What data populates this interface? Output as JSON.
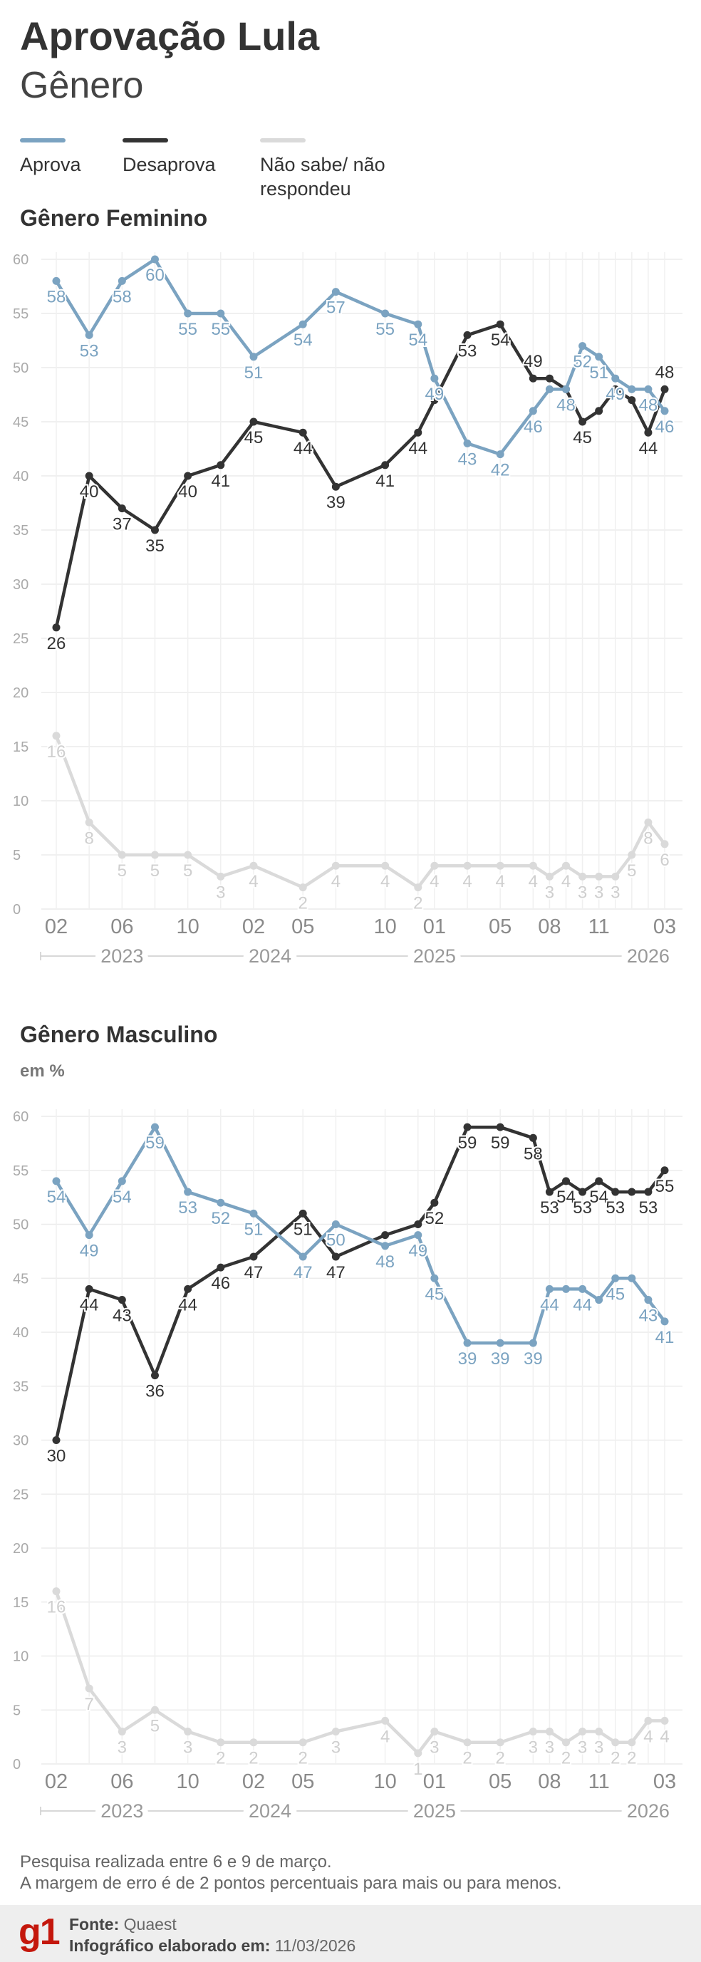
{
  "header": {
    "title": "Aprovação Lula",
    "subtitle": "Gênero"
  },
  "chart_data": [
    {
      "type": "line",
      "title": "Gênero Feminino",
      "x": [
        "2023-02",
        "2023-04",
        "2023-06",
        "2023-08",
        "2023-10",
        "2023-12",
        "2024-02",
        "2024-05",
        "2024-07",
        "2024-10",
        "2024-12",
        "2025-01",
        "2025-03",
        "2025-05",
        "2025-07",
        "2025-08",
        "2025-09",
        "2025-10",
        "2025-11",
        "2025-12",
        "2026-01",
        "2026-02",
        "2026-03"
      ],
      "xlim": [
        "2023-02",
        "2026-03"
      ],
      "xticks": [
        {
          "value": "2023-02",
          "label": "02"
        },
        {
          "value": "2023-06",
          "label": "06"
        },
        {
          "value": "2023-10",
          "label": "10"
        },
        {
          "value": "2024-02",
          "label": "02"
        },
        {
          "value": "2024-05",
          "label": "05"
        },
        {
          "value": "2024-10",
          "label": "10"
        },
        {
          "value": "2025-01",
          "label": "01"
        },
        {
          "value": "2025-05",
          "label": "05"
        },
        {
          "value": "2025-08",
          "label": "08"
        },
        {
          "value": "2025-11",
          "label": "11"
        },
        {
          "value": "2026-03",
          "label": "03"
        }
      ],
      "year_ticks": [
        {
          "value": "2023-06",
          "label": "2023"
        },
        {
          "value": "2024-03",
          "label": "2024"
        },
        {
          "value": "2025-01",
          "label": "2025"
        },
        {
          "value": "2026-02",
          "label": "2026"
        }
      ],
      "ylim": [
        0,
        60
      ],
      "yticks": [
        0,
        5,
        10,
        15,
        20,
        25,
        30,
        35,
        40,
        45,
        50,
        55,
        60
      ],
      "grid": true,
      "series": [
        {
          "name": "Aprova",
          "color": "#7ba3c1",
          "values": [
            58,
            53,
            58,
            60,
            55,
            55,
            51,
            54,
            57,
            55,
            54,
            49,
            43,
            42,
            46,
            48,
            48,
            52,
            51,
            49,
            48,
            48,
            46
          ],
          "value_labels": [
            "58",
            "53",
            "58",
            "60",
            "55",
            "55",
            "51",
            "54",
            "57",
            "55",
            "54",
            "49",
            "43",
            "42",
            "46",
            null,
            "48",
            "52",
            "51",
            "49",
            null,
            "48",
            "46"
          ]
        },
        {
          "name": "Desaprova",
          "color": "#333333",
          "values": [
            26,
            40,
            37,
            35,
            40,
            41,
            45,
            44,
            39,
            41,
            44,
            47,
            53,
            54,
            49,
            49,
            48,
            45,
            46,
            48,
            47,
            44,
            48
          ],
          "value_labels": [
            "26",
            "40",
            "37",
            "35",
            "40",
            "41",
            "45",
            "44",
            "39",
            "41",
            "44",
            null,
            "53",
            "54",
            "49",
            null,
            null,
            "45",
            null,
            null,
            null,
            "44",
            "48"
          ]
        },
        {
          "name": "Não sabe/ não respondeu",
          "color": "#dadada",
          "values": [
            16,
            8,
            5,
            5,
            5,
            3,
            4,
            2,
            4,
            4,
            2,
            4,
            4,
            4,
            4,
            3,
            4,
            3,
            3,
            3,
            5,
            8,
            6
          ],
          "value_labels": [
            "16",
            "8",
            "5",
            "5",
            "5",
            "3",
            "4",
            "2",
            "4",
            "4",
            "2",
            "4",
            "4",
            "4",
            "4",
            "3",
            "4",
            "3",
            "3",
            "3",
            "5",
            "8",
            "6"
          ]
        }
      ]
    },
    {
      "type": "line",
      "title": "Gênero Masculino",
      "subtitle": "em %",
      "x": [
        "2023-02",
        "2023-04",
        "2023-06",
        "2023-08",
        "2023-10",
        "2023-12",
        "2024-02",
        "2024-05",
        "2024-07",
        "2024-10",
        "2024-12",
        "2025-01",
        "2025-03",
        "2025-05",
        "2025-07",
        "2025-08",
        "2025-09",
        "2025-10",
        "2025-11",
        "2025-12",
        "2026-01",
        "2026-02",
        "2026-03"
      ],
      "xlim": [
        "2023-02",
        "2026-03"
      ],
      "xticks": [
        {
          "value": "2023-02",
          "label": "02"
        },
        {
          "value": "2023-06",
          "label": "06"
        },
        {
          "value": "2023-10",
          "label": "10"
        },
        {
          "value": "2024-02",
          "label": "02"
        },
        {
          "value": "2024-05",
          "label": "05"
        },
        {
          "value": "2024-10",
          "label": "10"
        },
        {
          "value": "2025-01",
          "label": "01"
        },
        {
          "value": "2025-05",
          "label": "05"
        },
        {
          "value": "2025-08",
          "label": "08"
        },
        {
          "value": "2025-11",
          "label": "11"
        },
        {
          "value": "2026-03",
          "label": "03"
        }
      ],
      "year_ticks": [
        {
          "value": "2023-06",
          "label": "2023"
        },
        {
          "value": "2024-03",
          "label": "2024"
        },
        {
          "value": "2025-01",
          "label": "2025"
        },
        {
          "value": "2026-02",
          "label": "2026"
        }
      ],
      "ylim": [
        0,
        60
      ],
      "yticks": [
        0,
        5,
        10,
        15,
        20,
        25,
        30,
        35,
        40,
        45,
        50,
        55,
        60
      ],
      "grid": true,
      "series": [
        {
          "color": "#7ba3c1",
          "values": [
            54,
            49,
            54,
            59,
            53,
            52,
            51,
            47,
            50,
            48,
            49,
            45,
            39,
            39,
            39,
            44,
            44,
            44,
            43,
            45,
            45,
            43,
            41
          ],
          "value_labels": [
            "54",
            "49",
            "54",
            "59",
            "53",
            "52",
            "51",
            "47",
            "50",
            "48",
            "49",
            "45",
            "39",
            "39",
            "39",
            "44",
            null,
            "44",
            null,
            "45",
            null,
            "43",
            "41"
          ]
        },
        {
          "color": "#333333",
          "values": [
            30,
            44,
            43,
            36,
            44,
            46,
            47,
            51,
            47,
            49,
            50,
            52,
            59,
            59,
            58,
            53,
            54,
            53,
            54,
            53,
            53,
            53,
            55
          ],
          "value_labels": [
            "30",
            "44",
            "43",
            "36",
            "44",
            "46",
            "47",
            "51",
            "47",
            null,
            null,
            "52",
            "59",
            "59",
            "58",
            "53",
            "54",
            "53",
            "54",
            "53",
            null,
            "53",
            "55"
          ]
        },
        {
          "color": "#dadada",
          "values": [
            16,
            7,
            3,
            5,
            3,
            2,
            2,
            2,
            3,
            4,
            1,
            3,
            2,
            2,
            3,
            3,
            2,
            3,
            3,
            2,
            2,
            4,
            4
          ],
          "value_labels": [
            "16",
            "7",
            "3",
            "5",
            "3",
            "2",
            "2",
            "2",
            "3",
            "4",
            "1",
            "3",
            "2",
            "2",
            "3",
            "3",
            "2",
            "3",
            "3",
            "2",
            "2",
            "4",
            "4"
          ]
        }
      ]
    }
  ],
  "notes": [
    "Pesquisa realizada entre 6 e 9 de março.",
    "A margem de erro é de 2 pontos percentuais para mais ou para menos."
  ],
  "footer": {
    "logo": "g1",
    "source_label": "Fonte:",
    "source": "Quaest",
    "date_label": "Infográfico elaborado em:",
    "date": "11/03/2026"
  }
}
